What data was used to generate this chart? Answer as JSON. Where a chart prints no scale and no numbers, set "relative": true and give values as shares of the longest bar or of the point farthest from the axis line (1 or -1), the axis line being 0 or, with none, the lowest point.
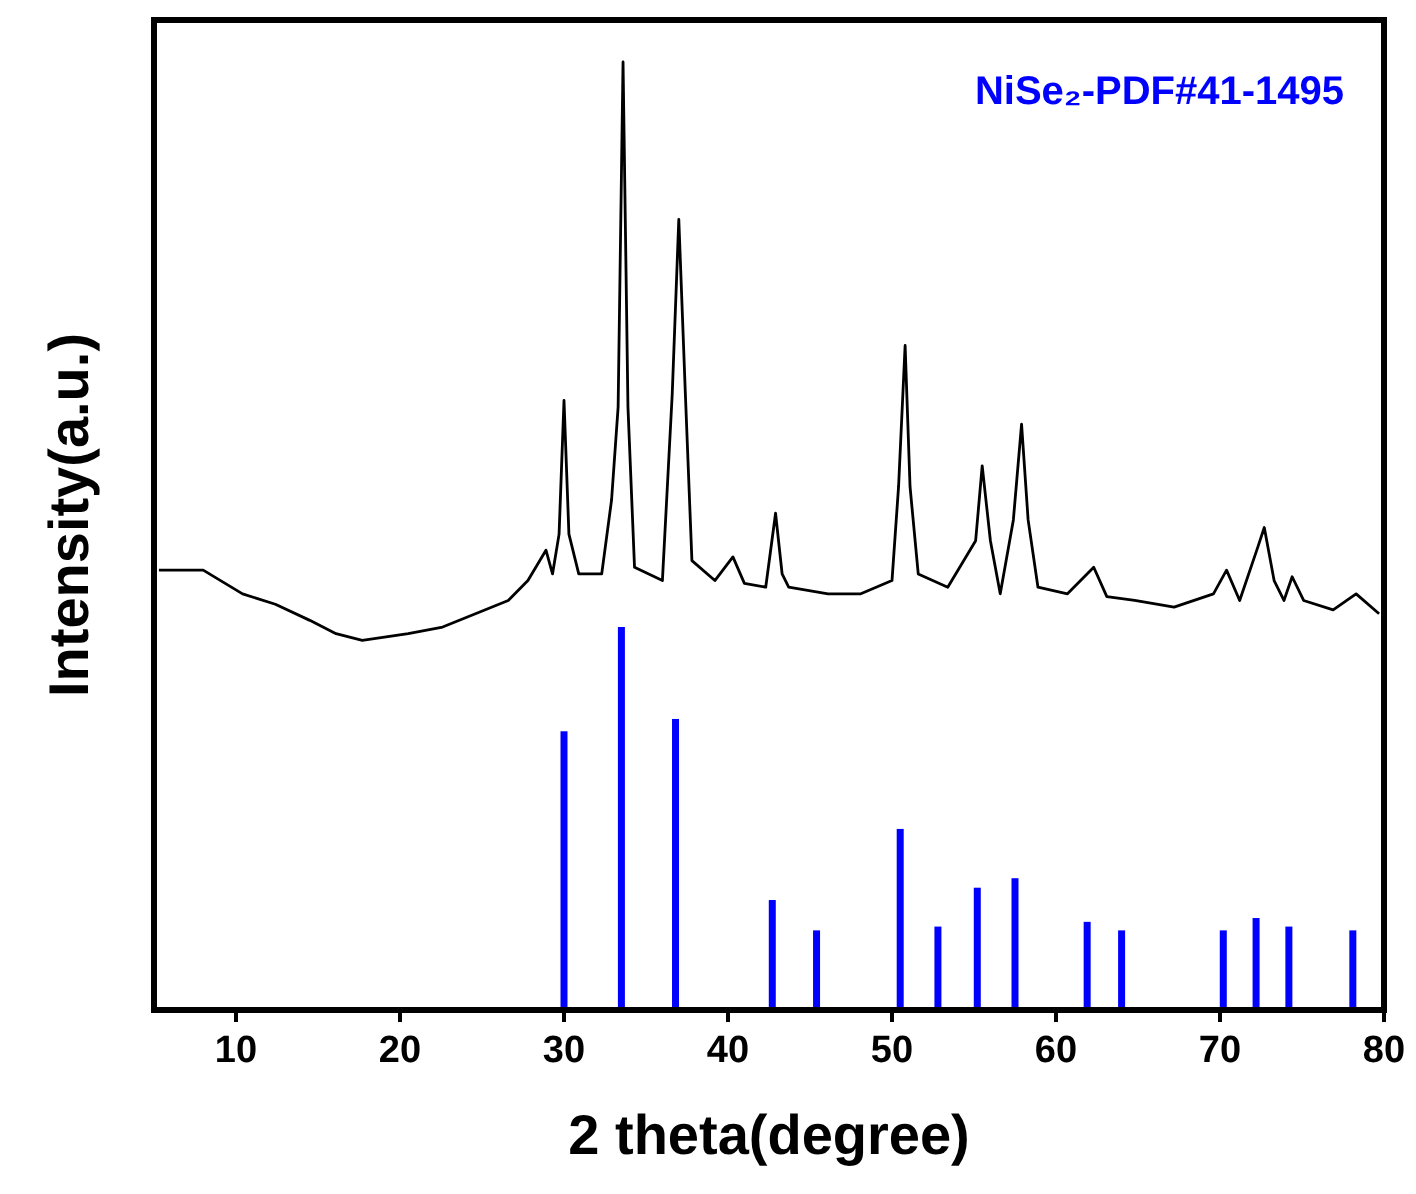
{
  "chart_data": {
    "type": "line",
    "xlabel": "2 theta(degree)",
    "ylabel": "Intensity(a.u.)",
    "relative": true,
    "xlim": [
      5,
      80
    ],
    "xticks": [
      10,
      20,
      30,
      40,
      50,
      60,
      70,
      80
    ],
    "legend": "top right",
    "grid": false,
    "marker": "none",
    "line_style": "solid",
    "series": [
      {
        "color": "#000000",
        "x": [
          5.3,
          8.0,
          10.4,
          12.4,
          14.5,
          16.1,
          17.7,
          20.5,
          22.6,
          24.6,
          26.6,
          27.8,
          28.9,
          29.3,
          29.7,
          30.0,
          30.3,
          30.9,
          32.3,
          32.9,
          33.3,
          33.6,
          33.9,
          34.3,
          36.0,
          36.6,
          37.0,
          37.4,
          37.8,
          39.2,
          40.3,
          41.0,
          42.3,
          42.9,
          43.3,
          43.7,
          46.1,
          48.1,
          50.0,
          50.4,
          50.8,
          51.1,
          51.6,
          53.4,
          55.1,
          55.5,
          56.0,
          56.6,
          57.4,
          57.9,
          58.3,
          58.9,
          60.7,
          62.3,
          63.1,
          64.8,
          67.2,
          69.6,
          70.4,
          71.2,
          72.3,
          72.7,
          73.3,
          73.9,
          74.4,
          75.1,
          76.9,
          78.3,
          79.7
        ],
        "values": [
          0.464,
          0.464,
          0.439,
          0.428,
          0.411,
          0.397,
          0.39,
          0.397,
          0.404,
          0.418,
          0.432,
          0.453,
          0.485,
          0.46,
          0.502,
          0.643,
          0.502,
          0.46,
          0.46,
          0.538,
          0.636,
          1.0,
          0.636,
          0.467,
          0.453,
          0.65,
          0.834,
          0.65,
          0.474,
          0.453,
          0.478,
          0.45,
          0.446,
          0.524,
          0.46,
          0.446,
          0.439,
          0.439,
          0.453,
          0.552,
          0.701,
          0.552,
          0.46,
          0.446,
          0.495,
          0.574,
          0.495,
          0.439,
          0.517,
          0.618,
          0.517,
          0.446,
          0.439,
          0.467,
          0.436,
          0.432,
          0.425,
          0.439,
          0.464,
          0.432,
          0.488,
          0.509,
          0.453,
          0.432,
          0.457,
          0.432,
          0.422,
          0.439,
          0.418
        ]
      },
      {
        "type": "bar",
        "name": "NiSe₂-PDF#41-1495",
        "color": "#0000ff",
        "x": [
          30.0,
          33.5,
          36.8,
          42.7,
          45.4,
          50.5,
          52.8,
          55.2,
          57.5,
          61.9,
          64.0,
          70.2,
          72.2,
          74.2,
          78.1
        ],
        "values": [
          0.294,
          0.404,
          0.307,
          0.116,
          0.084,
          0.191,
          0.088,
          0.129,
          0.139,
          0.093,
          0.084,
          0.084,
          0.097,
          0.088,
          0.084
        ]
      }
    ]
  }
}
